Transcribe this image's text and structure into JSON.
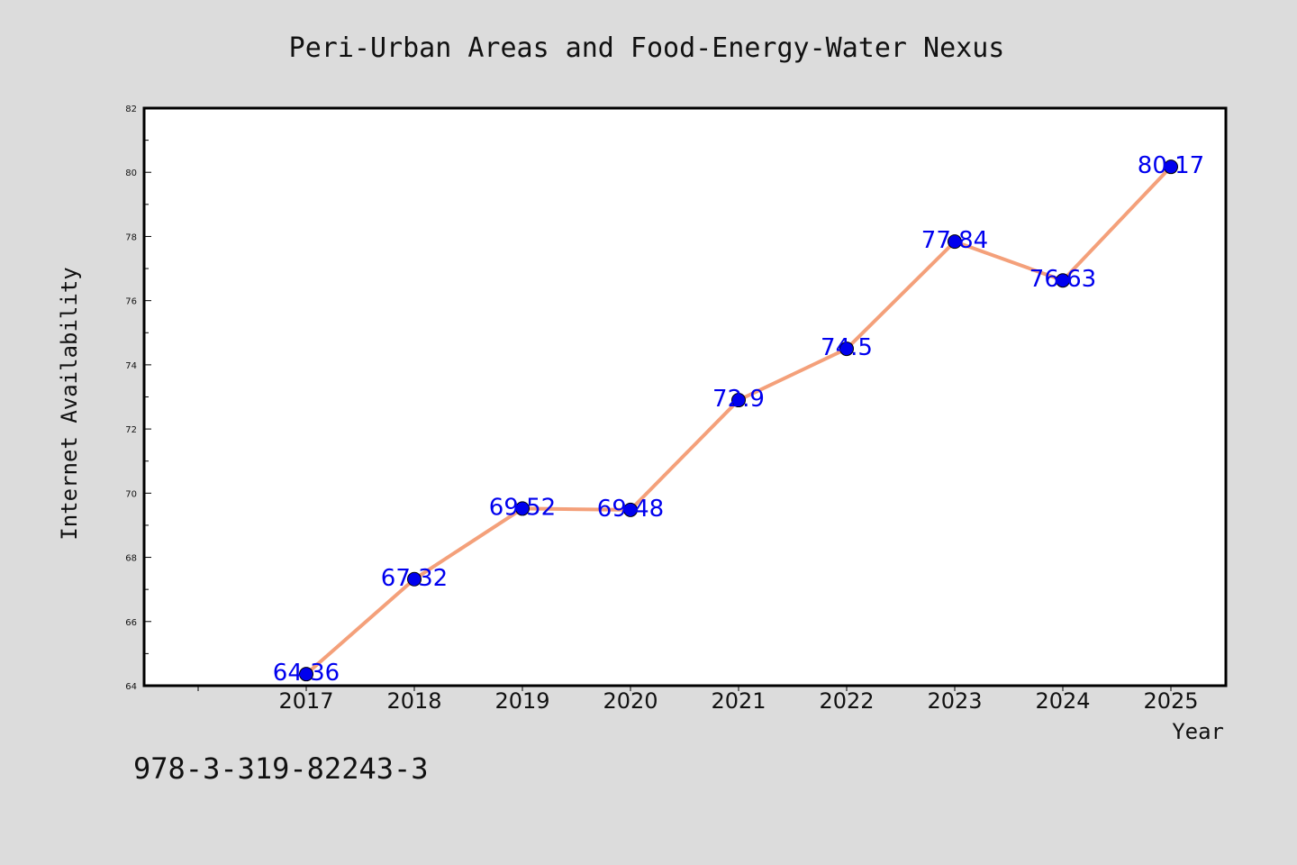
{
  "chart_data": {
    "type": "line",
    "title": "Peri-Urban Areas and Food-Energy-Water Nexus",
    "xlabel": "Year",
    "ylabel": "Internet Availability",
    "categories": [
      "2017",
      "2018",
      "2019",
      "2020",
      "2021",
      "2022",
      "2023",
      "2024",
      "2025"
    ],
    "series": [
      {
        "values": [
          64.36,
          67.32,
          69.52,
          69.48,
          72.9,
          74.5,
          77.84,
          76.63,
          80.17
        ],
        "line_color": "#f4a07a",
        "marker_color": "#0000ee"
      }
    ],
    "data_labels": [
      "64.36",
      "67.32",
      "69.52",
      "69.48",
      "72.9",
      "74.5",
      "77.84",
      "76.63",
      "80.17"
    ],
    "data_label_color": "#0000ee",
    "ylim": [
      64,
      82
    ],
    "y_ticks": [
      "64",
      "66",
      "68",
      "70",
      "72",
      "74",
      "76",
      "78",
      "80",
      "82"
    ],
    "grid": false,
    "legend": "none"
  },
  "footer": {
    "code": "978-3-319-82243-3"
  }
}
